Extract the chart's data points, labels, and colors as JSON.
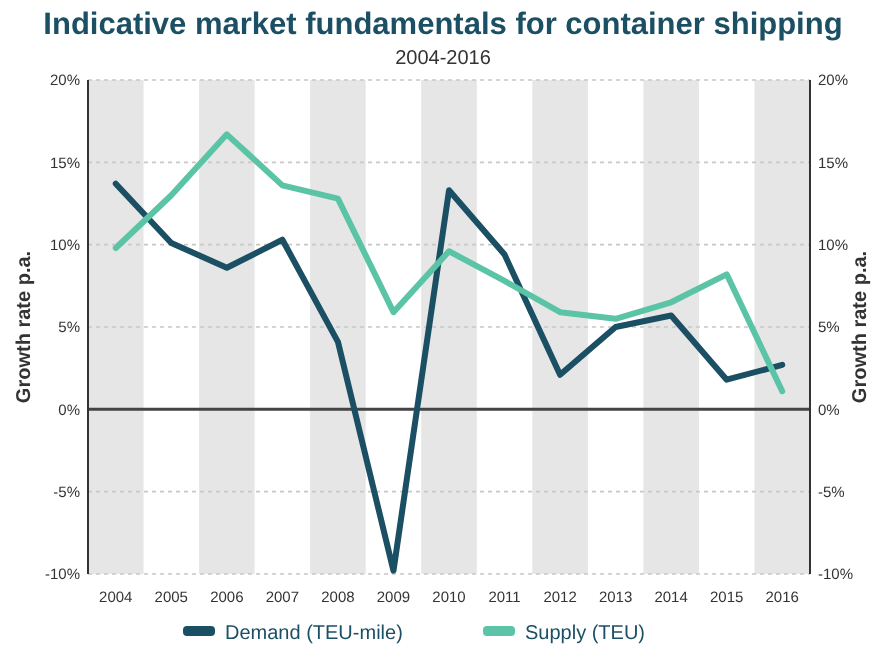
{
  "chart_data": {
    "type": "line",
    "title": "Indicative market fundamentals for container shipping",
    "subtitle": "2004-2016",
    "ylabel": "Growth rate p.a.",
    "y2label": "Growth rate p.a.",
    "categories": [
      "2004",
      "2005",
      "2006",
      "2007",
      "2008",
      "2009",
      "2010",
      "2011",
      "2012",
      "2013",
      "2014",
      "2015",
      "2016"
    ],
    "series": [
      {
        "name": "Demand (TEU-mile)",
        "color": "#1b4f63",
        "values": [
          13.7,
          10.1,
          8.6,
          10.3,
          4.1,
          -9.8,
          13.3,
          9.4,
          2.1,
          5.0,
          5.7,
          1.8,
          2.7
        ]
      },
      {
        "name": "Supply (TEU)",
        "color": "#5cc4a6",
        "values": [
          9.8,
          13.0,
          16.7,
          13.6,
          12.8,
          5.9,
          9.6,
          7.8,
          5.9,
          5.5,
          6.5,
          8.2,
          1.1
        ]
      }
    ],
    "ylim": [
      -10,
      20
    ],
    "yticks": [
      {
        "value": -10,
        "label": "-10%"
      },
      {
        "value": -5,
        "label": "-5%"
      },
      {
        "value": 0,
        "label": "0%"
      },
      {
        "value": 5,
        "label": "5%"
      },
      {
        "value": 10,
        "label": "10%"
      },
      {
        "value": 15,
        "label": "15%"
      },
      {
        "value": 20,
        "label": "20%"
      }
    ],
    "y2lim": [
      -10,
      20
    ],
    "y2ticks": [
      {
        "value": -10,
        "label": "-10%"
      },
      {
        "value": -5,
        "label": "-5%"
      },
      {
        "value": 0,
        "label": "0%"
      },
      {
        "value": 5,
        "label": "5%"
      },
      {
        "value": 10,
        "label": "10%"
      },
      {
        "value": 15,
        "label": "15%"
      },
      {
        "value": 20,
        "label": "20%"
      }
    ],
    "bands": [
      {
        "axis": "x",
        "from": "2004",
        "to": "2004",
        "color": "#e6e6e6"
      },
      {
        "axis": "x",
        "from": "2006",
        "to": "2006",
        "color": "#e6e6e6"
      },
      {
        "axis": "x",
        "from": "2008",
        "to": "2008",
        "color": "#e6e6e6"
      },
      {
        "axis": "x",
        "from": "2010",
        "to": "2010",
        "color": "#e6e6e6"
      },
      {
        "axis": "x",
        "from": "2012",
        "to": "2012",
        "color": "#e6e6e6"
      },
      {
        "axis": "x",
        "from": "2014",
        "to": "2014",
        "color": "#e6e6e6"
      },
      {
        "axis": "x",
        "from": "2016",
        "to": "2016",
        "color": "#e6e6e6"
      }
    ],
    "ref_lines": [
      {
        "axis": "y",
        "value": 0,
        "color": "#444444",
        "line_style": "solid"
      }
    ],
    "grid": "y",
    "legend": "bottom",
    "marker": "none",
    "line_style": "solid"
  }
}
